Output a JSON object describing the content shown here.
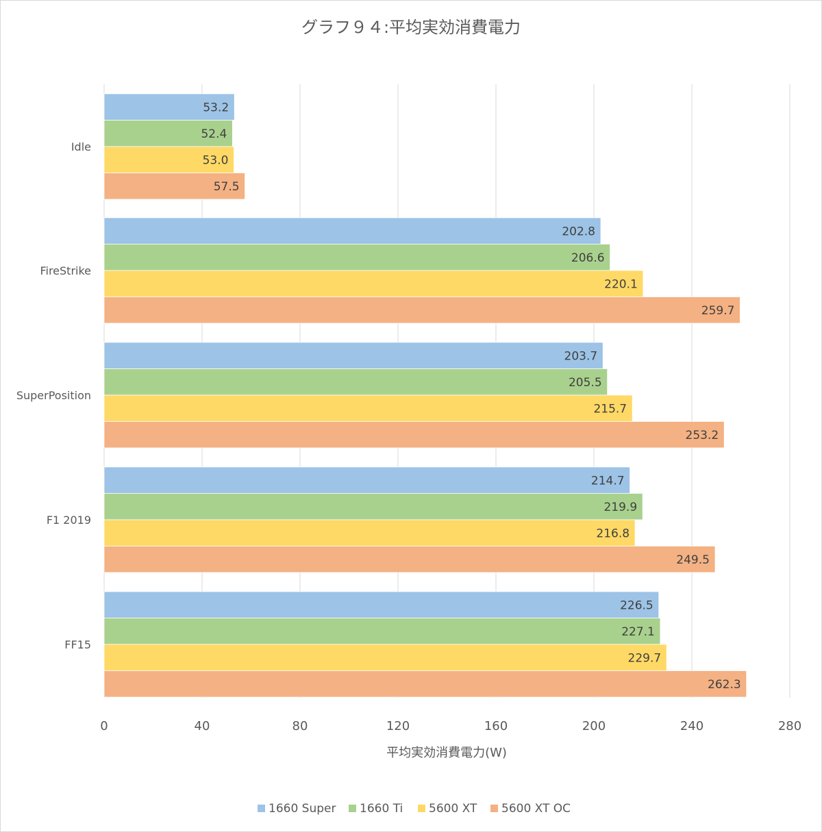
{
  "chart_data": {
    "type": "bar",
    "orientation": "horizontal",
    "title": "グラフ９４:平均実効消費電力",
    "xlabel": "平均実効消費電力(W)",
    "ylabel": "",
    "xlim": [
      0,
      280
    ],
    "x_ticks": [
      0,
      40,
      80,
      120,
      160,
      200,
      240,
      280
    ],
    "x_tick_labels": [
      "0",
      "40",
      "80",
      "120",
      "160",
      "200",
      "240",
      "280"
    ],
    "grid": "vertical",
    "legend_position": "bottom",
    "categories": [
      "Idle",
      "FireStrike",
      "SuperPosition",
      "F1 2019",
      "FF15"
    ],
    "series": [
      {
        "name": "1660 Super",
        "color": "#9dc3e6",
        "values": [
          53.2,
          202.8,
          203.7,
          214.7,
          226.5
        ],
        "labels": [
          "53.2",
          "202.8",
          "203.7",
          "214.7",
          "226.5"
        ]
      },
      {
        "name": "1660 Ti",
        "color": "#a9d18e",
        "values": [
          52.4,
          206.6,
          205.5,
          219.9,
          227.1
        ],
        "labels": [
          "52.4",
          "206.6",
          "205.5",
          "219.9",
          "227.1"
        ]
      },
      {
        "name": "5600 XT",
        "color": "#ffd966",
        "values": [
          53.0,
          220.1,
          215.7,
          216.8,
          229.7
        ],
        "labels": [
          "53.0",
          "220.1",
          "215.7",
          "216.8",
          "229.7"
        ]
      },
      {
        "name": "5600 XT OC",
        "color": "#f4b183",
        "values": [
          57.5,
          259.7,
          253.2,
          249.5,
          262.3
        ],
        "labels": [
          "57.5",
          "259.7",
          "253.2",
          "249.5",
          "262.3"
        ]
      }
    ]
  },
  "colors": {
    "gridline": "#d9d9d9",
    "text": "#595959",
    "bar_border": "#ffffff"
  }
}
